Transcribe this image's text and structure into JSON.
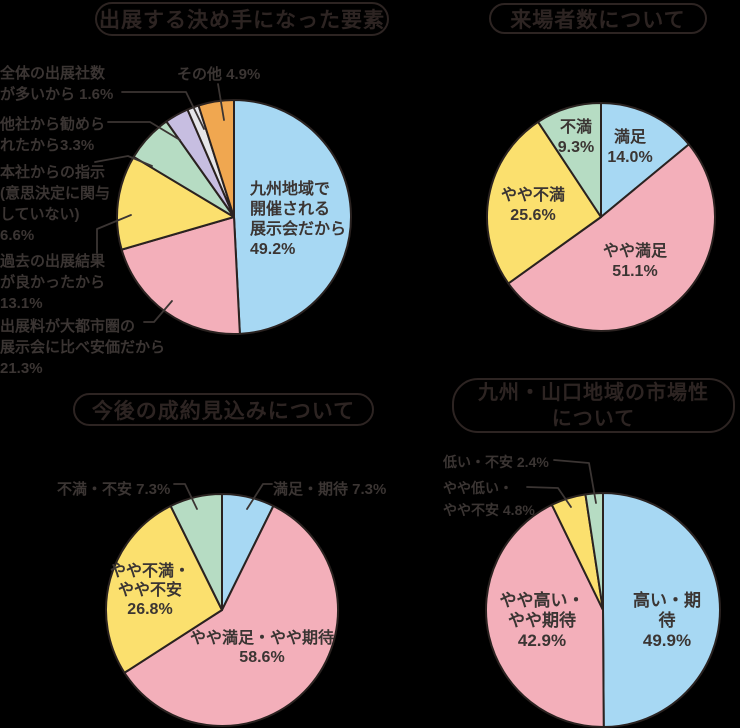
{
  "palette": {
    "background": "#000000",
    "ink": "#2d2422",
    "text": "#3b3533",
    "stroke": "#2a2220",
    "blue": "#a7d8f3",
    "pink": "#f3afba",
    "yellow": "#fbe06e",
    "green": "#b6dcc3",
    "purple": "#c7bee1",
    "gray": "#e6e6e9",
    "orange": "#f0a750"
  },
  "units": "%",
  "chart_data": [
    {
      "type": "pie",
      "title": "出展する決め手になった要素",
      "legend": "none",
      "start_angle_deg": 0,
      "direction": "clockwise",
      "slices": [
        {
          "label": "九州地域で開催される展示会だから",
          "value": 49.2,
          "color": "blue"
        },
        {
          "label": "出展料が大都市圏の展示会に比べ安価だから",
          "value": 21.3,
          "color": "pink"
        },
        {
          "label": "過去の出展結果が良かったから",
          "value": 13.1,
          "color": "yellow"
        },
        {
          "label": "本社からの指示(意思決定に関与していない)",
          "value": 6.6,
          "color": "green"
        },
        {
          "label": "他社から勧められたから",
          "value": 3.3,
          "color": "purple"
        },
        {
          "label": "全体の出展社数が多いから",
          "value": 1.6,
          "color": "gray"
        },
        {
          "label": "その他",
          "value": 4.9,
          "color": "orange"
        }
      ],
      "labels": {
        "kyushu": "九州地域で\n開催される\n展示会だから\n49.2%",
        "price": "出展料が大都市圏の\n展示会に比べ安価だから\n21.3%",
        "past": "過去の出展結果\nが良かったから\n13.1%",
        "hq": "本社からの指示\n(意思決定に関与\nしていない)\n6.6%",
        "other_company": "他社から勧めら\nれたから3.3%",
        "total_exhibitors": "全体の出展社数\nが多いから 1.6%",
        "other": "その他 4.9%"
      }
    },
    {
      "type": "pie",
      "title": "来場者数について",
      "legend": "none",
      "start_angle_deg": 0,
      "direction": "clockwise",
      "slices": [
        {
          "label": "満足",
          "value": 14.0,
          "color": "blue"
        },
        {
          "label": "やや満足",
          "value": 51.1,
          "color": "pink"
        },
        {
          "label": "やや不満",
          "value": 25.6,
          "color": "yellow"
        },
        {
          "label": "不満",
          "value": 9.3,
          "color": "green"
        }
      ],
      "labels": {
        "manzoku": "満足\n14.0%",
        "yaya_manzoku": "やや満足\n51.1%",
        "yaya_fuman": "やや不満\n25.6%",
        "fuman": "不満\n9.3%"
      }
    },
    {
      "type": "pie",
      "title": "今後の成約見込みについて",
      "legend": "none",
      "start_angle_deg": 0,
      "direction": "clockwise",
      "slices": [
        {
          "label": "満足・期待",
          "value": 7.3,
          "color": "blue"
        },
        {
          "label": "やや満足・やや期待",
          "value": 58.6,
          "color": "pink"
        },
        {
          "label": "やや不満・やや不安",
          "value": 26.8,
          "color": "yellow"
        },
        {
          "label": "不満・不安",
          "value": 7.3,
          "color": "green"
        }
      ],
      "labels": {
        "manzoku_kitai": "満足・期待 7.3%",
        "yaya_manzoku_kitai": "やや満足・やや期待\n58.6%",
        "yaya_fuman_fuan": "やや不満・\nやや不安\n26.8%",
        "fuman_fuan": "不満・不安 7.3%"
      }
    },
    {
      "type": "pie",
      "title": "九州・山口地域の市場性\nについて",
      "legend": "none",
      "start_angle_deg": 0,
      "direction": "clockwise",
      "slices": [
        {
          "label": "高い・期待",
          "value": 49.9,
          "color": "blue"
        },
        {
          "label": "やや高い・やや期待",
          "value": 42.9,
          "color": "pink"
        },
        {
          "label": "やや低い・やや不安",
          "value": 4.8,
          "color": "yellow"
        },
        {
          "label": "低い・不安",
          "value": 2.4,
          "color": "green"
        }
      ],
      "labels": {
        "takai_kitai": "高い・期待\n49.9%",
        "yaya_takai": "やや高い・\nやや期待\n42.9%",
        "yaya_hikui": "やや低い・\nやや不安 4.8%",
        "hikui_fuan": "低い・不安 2.4%"
      }
    }
  ]
}
